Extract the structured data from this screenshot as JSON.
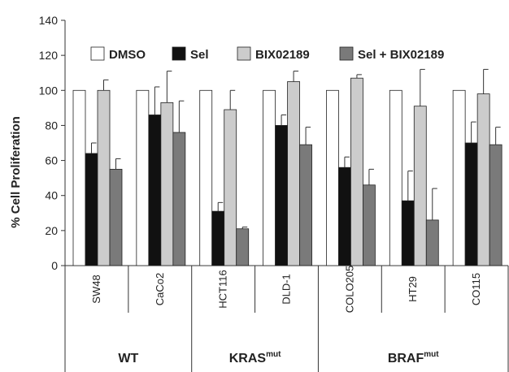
{
  "chart_data": {
    "type": "bar",
    "ylabel": "% Cell Proliferation",
    "ylim": [
      0,
      140
    ],
    "yticks": [
      0,
      20,
      40,
      60,
      80,
      100,
      120,
      140
    ],
    "grid": false,
    "legend_position": "top",
    "categories": [
      "SW48",
      "CaCo2",
      "HCT116",
      "DLD-1",
      "COLO205",
      "HT29",
      "CO115"
    ],
    "series": [
      {
        "name": "DMSO",
        "color": "#ffffff",
        "values": [
          100,
          100,
          100,
          100,
          100,
          100,
          100
        ],
        "errors": [
          0,
          0,
          0,
          0,
          0,
          0,
          0
        ]
      },
      {
        "name": "Sel",
        "color": "#111111",
        "values": [
          64,
          86,
          31,
          80,
          56,
          37,
          70
        ],
        "errors": [
          6,
          16,
          5,
          6,
          6,
          17,
          12
        ]
      },
      {
        "name": "BIX02189",
        "color": "#cccccc",
        "values": [
          100,
          93,
          89,
          105,
          107,
          91,
          98
        ],
        "errors": [
          6,
          18,
          11,
          6,
          2,
          21,
          14
        ]
      },
      {
        "name": "Sel + BIX02189",
        "color": "#7a7a7a",
        "values": [
          55,
          76,
          21,
          69,
          46,
          26,
          69
        ],
        "errors": [
          6,
          18,
          1,
          10,
          9,
          18,
          10
        ]
      }
    ],
    "groups": [
      {
        "label": "WT",
        "superscript": "",
        "categories": [
          "SW48",
          "CaCo2"
        ]
      },
      {
        "label": "KRAS",
        "superscript": "mut",
        "categories": [
          "HCT116",
          "DLD-1"
        ]
      },
      {
        "label": "BRAF",
        "superscript": "mut",
        "categories": [
          "COLO205",
          "HT29",
          "CO115"
        ]
      }
    ]
  }
}
